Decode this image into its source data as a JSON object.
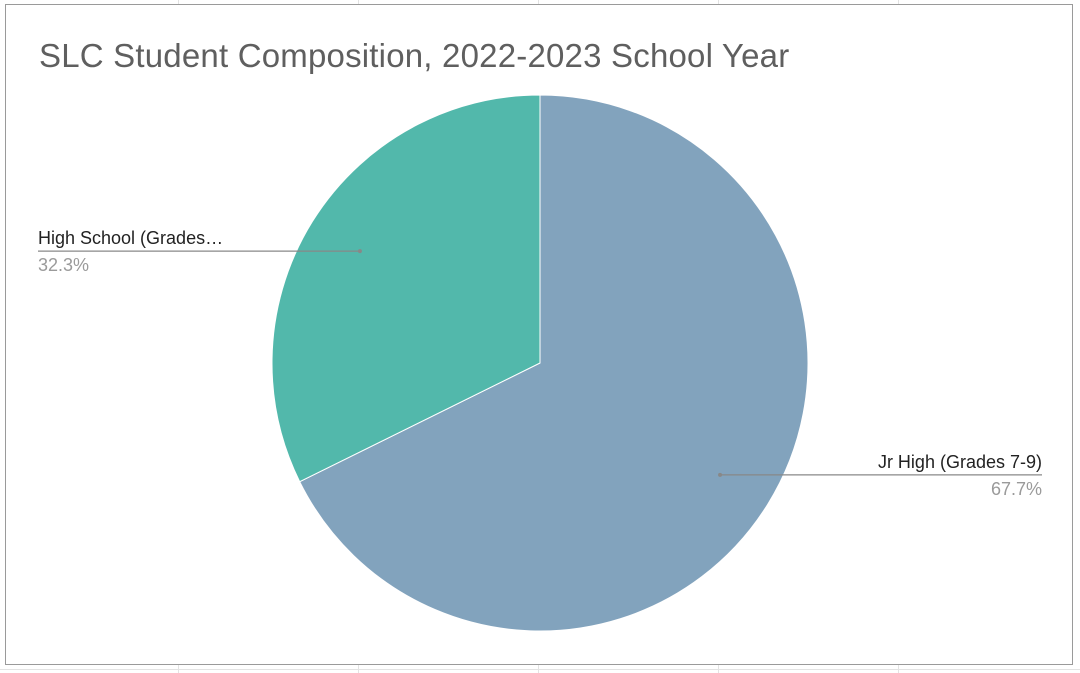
{
  "chart_data": {
    "type": "pie",
    "title": "SLC Student Composition, 2022-2023 School Year",
    "slices": [
      {
        "label": "Jr High (Grades 7-9)",
        "value": 67.7,
        "value_label": "67.7%",
        "color": "#82a3bd",
        "label_side": "right"
      },
      {
        "label": "High School (Grades…",
        "value": 32.3,
        "value_label": "32.3%",
        "color": "#52b8ab",
        "label_side": "left"
      }
    ],
    "start_angle": "12 o'clock",
    "direction": "clockwise",
    "legend": "none"
  },
  "colors": {
    "title": "#5f5f5f",
    "label": "#222222",
    "percent": "#9a9a9a",
    "leader_line": "#888888",
    "border": "#9a9a9a"
  }
}
